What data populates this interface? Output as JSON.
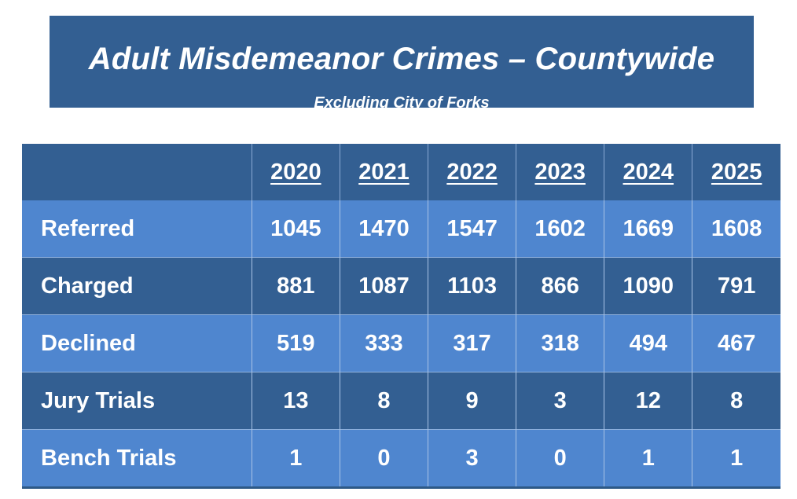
{
  "title": "Adult Misdemeanor Crimes – Countywide",
  "subtitle": "Excluding City of Forks",
  "table": {
    "headers": [
      "2020",
      "2021",
      "2022",
      "2023",
      "2024",
      "2025"
    ],
    "rows": [
      {
        "label": "Referred",
        "values": [
          "1045",
          "1470",
          "1547",
          "1602",
          "1669",
          "1608"
        ]
      },
      {
        "label": "Charged",
        "values": [
          "881",
          "1087",
          "1103",
          "866",
          "1090",
          "791"
        ]
      },
      {
        "label": "Declined",
        "values": [
          "519",
          "333",
          "317",
          "318",
          "494",
          "467"
        ]
      },
      {
        "label": "Jury Trials",
        "values": [
          "13",
          "8",
          "9",
          "3",
          "12",
          "8"
        ]
      },
      {
        "label": "Bench Trials",
        "values": [
          "1",
          "0",
          "3",
          "0",
          "1",
          "1"
        ]
      }
    ]
  },
  "colors": {
    "dark_blue": "#335f92",
    "light_blue": "#4f86cf",
    "text": "#ffffff"
  }
}
